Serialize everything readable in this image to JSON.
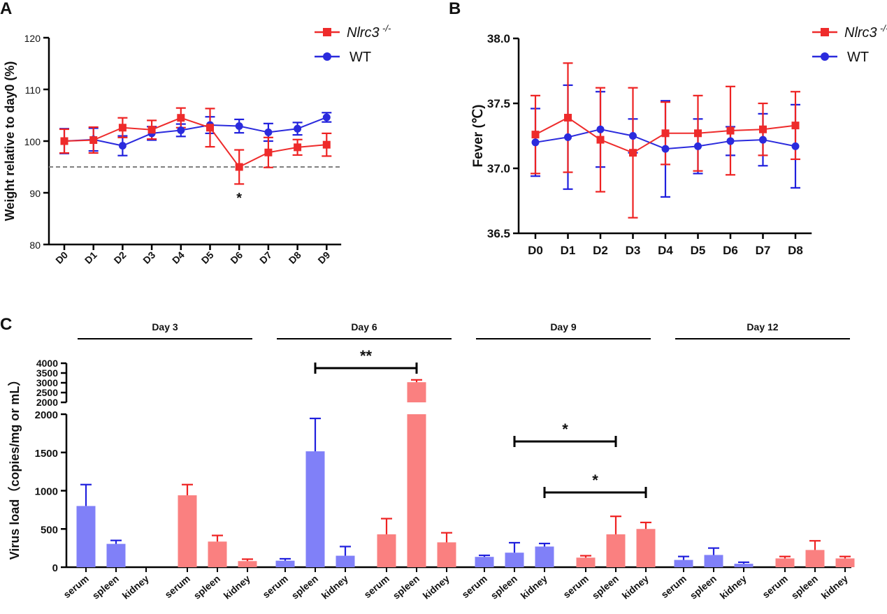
{
  "panel_labels": {
    "a": "A",
    "b": "B",
    "c": "C"
  },
  "colors": {
    "nlrc3": "#ee2b2b",
    "wt": "#2b2bdd",
    "bar_wt": "#8080f8",
    "bar_nlrc3": "#fa8080",
    "err_wt": "#2020dd",
    "err_nlrc3": "#ee2222",
    "axis": "#000000",
    "dash": "#808080"
  },
  "chart_data": [
    {
      "type": "line",
      "panel": "A",
      "title": "",
      "xlabel": "",
      "ylabel": "Weight relative to day0 (%)",
      "ylim": [
        80,
        120
      ],
      "yticks": [
        "80",
        "90",
        "100",
        "110",
        "120"
      ],
      "categories": [
        "D0",
        "D1",
        "D2",
        "D3",
        "D4",
        "D5",
        "D6",
        "D7",
        "D8",
        "D9"
      ],
      "reference_line": 95,
      "significance": [
        {
          "category": "D6",
          "label": "*"
        }
      ],
      "legend": {
        "position": "top-right",
        "nlrc3_label": "Nlrc3",
        "nlrc3_sup": "-/-",
        "wt_label": "WT"
      },
      "series": [
        {
          "name": "Nlrc3-/-",
          "values": [
            100,
            100.2,
            102.6,
            102.2,
            104.5,
            102.6,
            95,
            97.8,
            98.8,
            99.3
          ],
          "errors": [
            2.3,
            2.5,
            1.9,
            1.8,
            1.9,
            3.7,
            3.3,
            2.9,
            1.5,
            2.2
          ]
        },
        {
          "name": "WT",
          "values": [
            100,
            100.3,
            99.1,
            101.5,
            102.1,
            103.1,
            102.9,
            101.7,
            102.4,
            104.6
          ],
          "errors": [
            2.4,
            2.2,
            1.9,
            1.3,
            1.2,
            1.6,
            1.3,
            1.7,
            1.2,
            0.9
          ]
        }
      ]
    },
    {
      "type": "line",
      "panel": "B",
      "title": "",
      "xlabel": "",
      "ylabel": "Fever (℃)",
      "ylim": [
        36.5,
        38.0
      ],
      "yticks": [
        "36.5",
        "37.0",
        "37.5",
        "38.0"
      ],
      "categories": [
        "D0",
        "D1",
        "D2",
        "D3",
        "D4",
        "D5",
        "D6",
        "D7",
        "D8"
      ],
      "legend": {
        "position": "top-right",
        "nlrc3_label": "Nlrc3",
        "nlrc3_sup": "-/-",
        "wt_label": "WT"
      },
      "series": [
        {
          "name": "Nlrc3-/-",
          "values": [
            37.26,
            37.39,
            37.22,
            37.12,
            37.27,
            37.27,
            37.29,
            37.3,
            37.33
          ],
          "errors": [
            0.3,
            0.42,
            0.4,
            0.5,
            0.24,
            0.29,
            0.34,
            0.2,
            0.26
          ]
        },
        {
          "name": "WT",
          "values": [
            37.2,
            37.24,
            37.3,
            37.25,
            37.15,
            37.17,
            37.21,
            37.22,
            37.17
          ],
          "errors": [
            0.26,
            0.4,
            0.29,
            0.13,
            0.37,
            0.21,
            0.11,
            0.2,
            0.32
          ]
        }
      ]
    },
    {
      "type": "bar",
      "panel": "C",
      "title": "",
      "ylabel": "Virus load（copies/mg or mL）",
      "yaxis_break": {
        "lower_range": [
          0,
          2000
        ],
        "upper_range": [
          2000,
          4000
        ]
      },
      "yticks_lower": [
        "0",
        "500",
        "1000",
        "1500",
        "2000"
      ],
      "yticks_upper": [
        "2000",
        "2500",
        "3000",
        "3500",
        "4000"
      ],
      "group_labels": [
        "Day 3",
        "Day 6",
        "Day 9",
        "Day 12"
      ],
      "categories": [
        "serum",
        "spleen",
        "kidney"
      ],
      "groups": [
        {
          "label": "Day 3",
          "WT": {
            "values": [
              800,
              305,
              0
            ],
            "errors": [
              280,
              45,
              0
            ]
          },
          "Nlrc3-/-": {
            "values": [
              940,
              335,
              80
            ],
            "errors": [
              140,
              80,
              25
            ]
          }
        },
        {
          "label": "Day 6",
          "WT": {
            "values": [
              85,
              1515,
              150
            ],
            "errors": [
              25,
              430,
              120
            ]
          },
          "Nlrc3-/-": {
            "values": [
              430,
              3030,
              325
            ],
            "errors": [
              205,
              120,
              125
            ]
          }
        },
        {
          "label": "Day 9",
          "WT": {
            "values": [
              135,
              190,
              270
            ],
            "errors": [
              20,
              130,
              40
            ]
          },
          "Nlrc3-/-": {
            "values": [
              125,
              430,
              500
            ],
            "errors": [
              25,
              235,
              85
            ]
          }
        },
        {
          "label": "Day 12",
          "WT": {
            "values": [
              95,
              160,
              45
            ],
            "errors": [
              45,
              90,
              20
            ]
          },
          "Nlrc3-/-": {
            "values": [
              115,
              225,
              115
            ],
            "errors": [
              25,
              120,
              25
            ]
          }
        }
      ],
      "significance": [
        {
          "group": "Day 6",
          "from": "WT spleen",
          "to": "Nlrc3-/- spleen",
          "label": "**"
        },
        {
          "group": "Day 9",
          "from": "WT spleen",
          "to": "Nlrc3-/- spleen",
          "label": "*"
        },
        {
          "group": "Day 9",
          "from": "WT kidney",
          "to": "Nlrc3-/- kidney",
          "label": "*"
        }
      ]
    }
  ]
}
